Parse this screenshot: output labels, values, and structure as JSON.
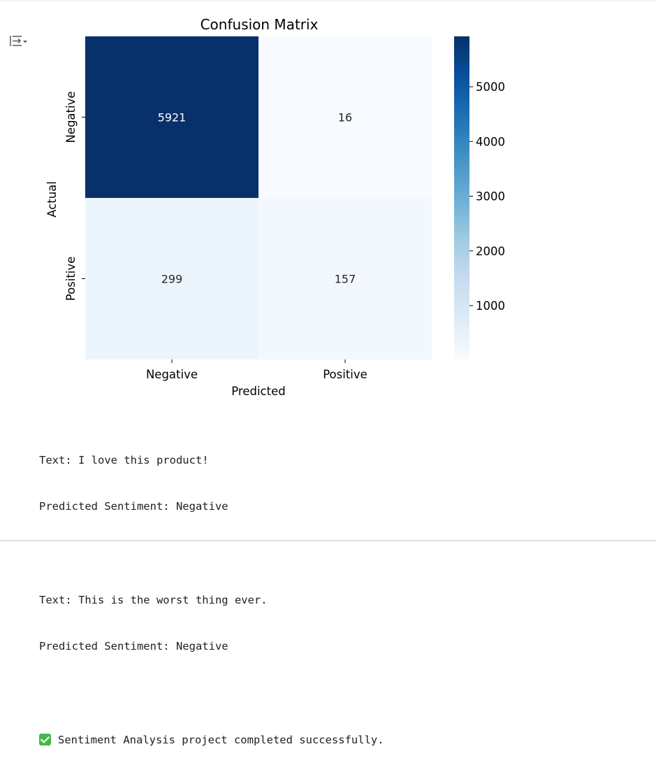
{
  "chart_data": {
    "type": "heatmap",
    "title": "Confusion Matrix",
    "xlabel": "Predicted",
    "ylabel": "Actual",
    "x_categories": [
      "Negative",
      "Positive"
    ],
    "y_categories": [
      "Negative",
      "Positive"
    ],
    "values": [
      [
        5921,
        16
      ],
      [
        299,
        157
      ]
    ],
    "colormap": "Blues",
    "colorbar": {
      "ticks": [
        1000,
        2000,
        3000,
        4000,
        5000
      ],
      "range": [
        16,
        5921
      ]
    },
    "colors": {
      "low": "#f7fbff",
      "high": "#08306b",
      "dark_cell_text": "#ffffff",
      "light_cell_text": "#262626"
    }
  },
  "console": {
    "lines": [
      {
        "text_label": "Text: I love this product!",
        "prediction": "Predicted Sentiment: Negative"
      },
      {
        "text_label": "Text: This is the worst thing ever.",
        "prediction": "Predicted Sentiment: Negative"
      }
    ],
    "completion_icon": "check-mark-icon",
    "completion_message": "Sentiment Analysis project completed successfully."
  },
  "toolbar": {
    "output_icon": "output-settings-icon"
  }
}
